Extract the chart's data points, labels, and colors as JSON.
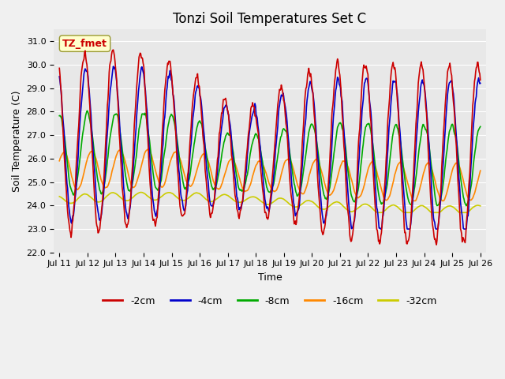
{
  "title": "Tonzi Soil Temperatures Set C",
  "xlabel": "Time",
  "ylabel": "Soil Temperature (C)",
  "annotation": "TZ_fmet",
  "ylim": [
    22.0,
    31.5
  ],
  "yticks": [
    22.0,
    23.0,
    24.0,
    25.0,
    26.0,
    27.0,
    28.0,
    29.0,
    30.0,
    31.0
  ],
  "x_tick_labels": [
    "Jul 11",
    "Jul 12",
    "Jul 13",
    "Jul 14",
    "Jul 15",
    "Jul 16",
    "Jul 17",
    "Jul 18",
    "Jul 19",
    "Jul 20",
    "Jul 21",
    "Jul 22",
    "Jul 23",
    "Jul 24",
    "Jul 25",
    "Jul 26"
  ],
  "series_colors": {
    "-2cm": "#cc0000",
    "-4cm": "#0000cc",
    "-8cm": "#00aa00",
    "-16cm": "#ff8800",
    "-32cm": "#cccc00"
  },
  "background_color": "#e8e8e8",
  "fig_bg_color": "#f0f0f0",
  "linewidth": 1.2,
  "title_fontsize": 12,
  "label_fontsize": 9,
  "tick_fontsize": 8,
  "annotation_fontsize": 9,
  "legend_fontsize": 9
}
